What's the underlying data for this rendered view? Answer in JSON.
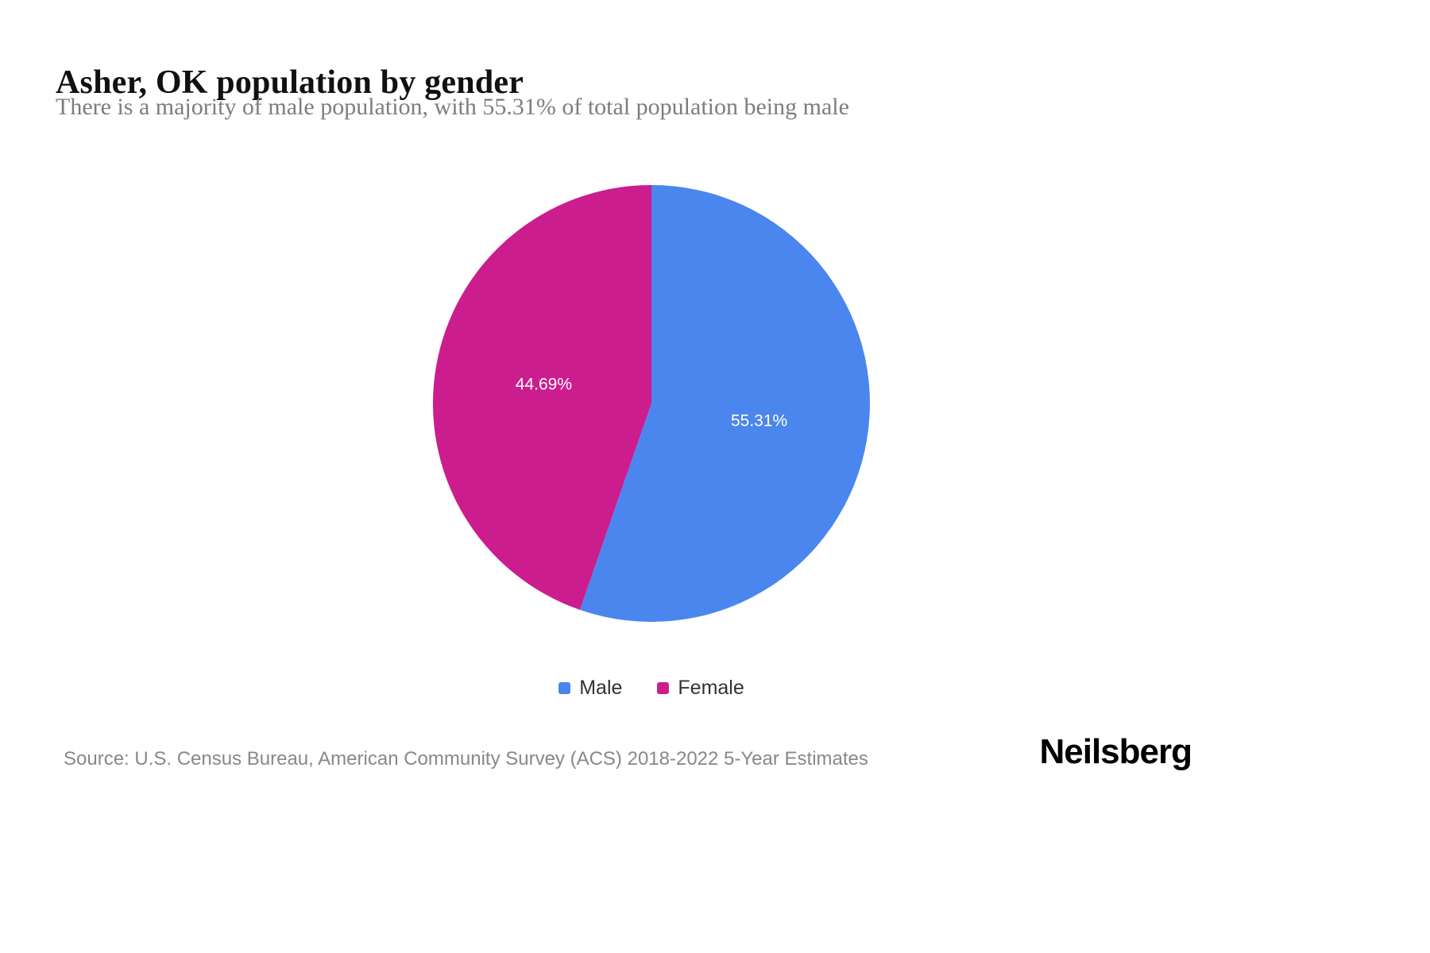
{
  "page": {
    "title": "Asher, OK population by gender",
    "subtitle": "There is a majority of male population, with 55.31% of total population being male",
    "source": "Source: U.S. Census Bureau, American Community Survey (ACS) 2018-2022 5-Year Estimates",
    "brand": "Neilsberg"
  },
  "chart_data": {
    "type": "pie",
    "title": "Asher, OK population by gender",
    "legend_position": "bottom",
    "start_angle_deg": 0,
    "direction": "clockwise",
    "label_color": "#ffffff",
    "slices": [
      {
        "label": "Male",
        "value": 55.31,
        "display": "55.31%",
        "color": "#4a86ee"
      },
      {
        "label": "Female",
        "value": 44.69,
        "display": "44.69%",
        "color": "#cc1d8e"
      }
    ]
  }
}
